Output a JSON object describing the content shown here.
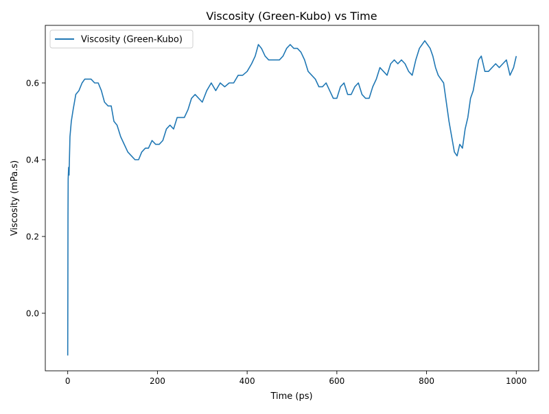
{
  "chart_data": {
    "type": "line",
    "title": "Viscosity (Green-Kubo) vs Time",
    "xlabel": "Time (ps)",
    "ylabel": "Viscosity (mPa.s)",
    "xlim": [
      -50,
      1050
    ],
    "ylim": [
      -0.15,
      0.75
    ],
    "xticks": [
      0,
      200,
      400,
      600,
      800,
      1000
    ],
    "yticks": [
      0.0,
      0.2,
      0.4,
      0.6
    ],
    "xtick_labels": [
      "0",
      "200",
      "400",
      "600",
      "800",
      "1000"
    ],
    "ytick_labels": [
      "0.0",
      "0.2",
      "0.4",
      "0.6"
    ],
    "grid": false,
    "legend_position": "upper-left",
    "series": [
      {
        "name": "Viscosity (Green-Kubo)",
        "color": "#1f77b4",
        "x": [
          0,
          0.3,
          0.6,
          1,
          2,
          3,
          5,
          8,
          12,
          18,
          25,
          32,
          38,
          45,
          52,
          60,
          68,
          75,
          82,
          90,
          97,
          103,
          110,
          118,
          126,
          134,
          142,
          150,
          158,
          165,
          173,
          180,
          188,
          196,
          204,
          212,
          220,
          228,
          236,
          244,
          252,
          260,
          268,
          276,
          284,
          292,
          300,
          310,
          320,
          330,
          340,
          350,
          360,
          370,
          380,
          390,
          400,
          410,
          418,
          425,
          432,
          440,
          448,
          456,
          464,
          472,
          480,
          488,
          496,
          504,
          512,
          520,
          528,
          536,
          544,
          552,
          560,
          568,
          576,
          584,
          592,
          600,
          608,
          616,
          624,
          632,
          640,
          648,
          656,
          664,
          672,
          680,
          688,
          696,
          704,
          712,
          720,
          728,
          736,
          744,
          752,
          760,
          768,
          776,
          784,
          790,
          796,
          802,
          808,
          814,
          820,
          826,
          832,
          838,
          844,
          850,
          856,
          862,
          868,
          874,
          880,
          886,
          892,
          898,
          904,
          910,
          916,
          922,
          930,
          938,
          946,
          954,
          962,
          970,
          978,
          986,
          994,
          1000
        ],
        "y": [
          -0.11,
          0.05,
          0.25,
          0.35,
          0.38,
          0.36,
          0.46,
          0.5,
          0.53,
          0.57,
          0.58,
          0.6,
          0.61,
          0.61,
          0.61,
          0.6,
          0.6,
          0.58,
          0.55,
          0.54,
          0.54,
          0.5,
          0.49,
          0.46,
          0.44,
          0.42,
          0.41,
          0.4,
          0.4,
          0.42,
          0.43,
          0.43,
          0.45,
          0.44,
          0.44,
          0.45,
          0.48,
          0.49,
          0.48,
          0.51,
          0.51,
          0.51,
          0.53,
          0.56,
          0.57,
          0.56,
          0.55,
          0.58,
          0.6,
          0.58,
          0.6,
          0.59,
          0.6,
          0.6,
          0.62,
          0.62,
          0.63,
          0.65,
          0.67,
          0.7,
          0.69,
          0.67,
          0.66,
          0.66,
          0.66,
          0.66,
          0.67,
          0.69,
          0.7,
          0.69,
          0.69,
          0.68,
          0.66,
          0.63,
          0.62,
          0.61,
          0.59,
          0.59,
          0.6,
          0.58,
          0.56,
          0.56,
          0.59,
          0.6,
          0.57,
          0.57,
          0.59,
          0.6,
          0.57,
          0.56,
          0.56,
          0.59,
          0.61,
          0.64,
          0.63,
          0.62,
          0.65,
          0.66,
          0.65,
          0.66,
          0.65,
          0.63,
          0.62,
          0.66,
          0.69,
          0.7,
          0.71,
          0.7,
          0.69,
          0.67,
          0.64,
          0.62,
          0.61,
          0.6,
          0.55,
          0.5,
          0.46,
          0.42,
          0.41,
          0.44,
          0.43,
          0.48,
          0.51,
          0.56,
          0.58,
          0.62,
          0.66,
          0.67,
          0.63,
          0.63,
          0.64,
          0.65,
          0.64,
          0.65,
          0.66,
          0.62,
          0.64,
          0.67
        ]
      }
    ]
  }
}
